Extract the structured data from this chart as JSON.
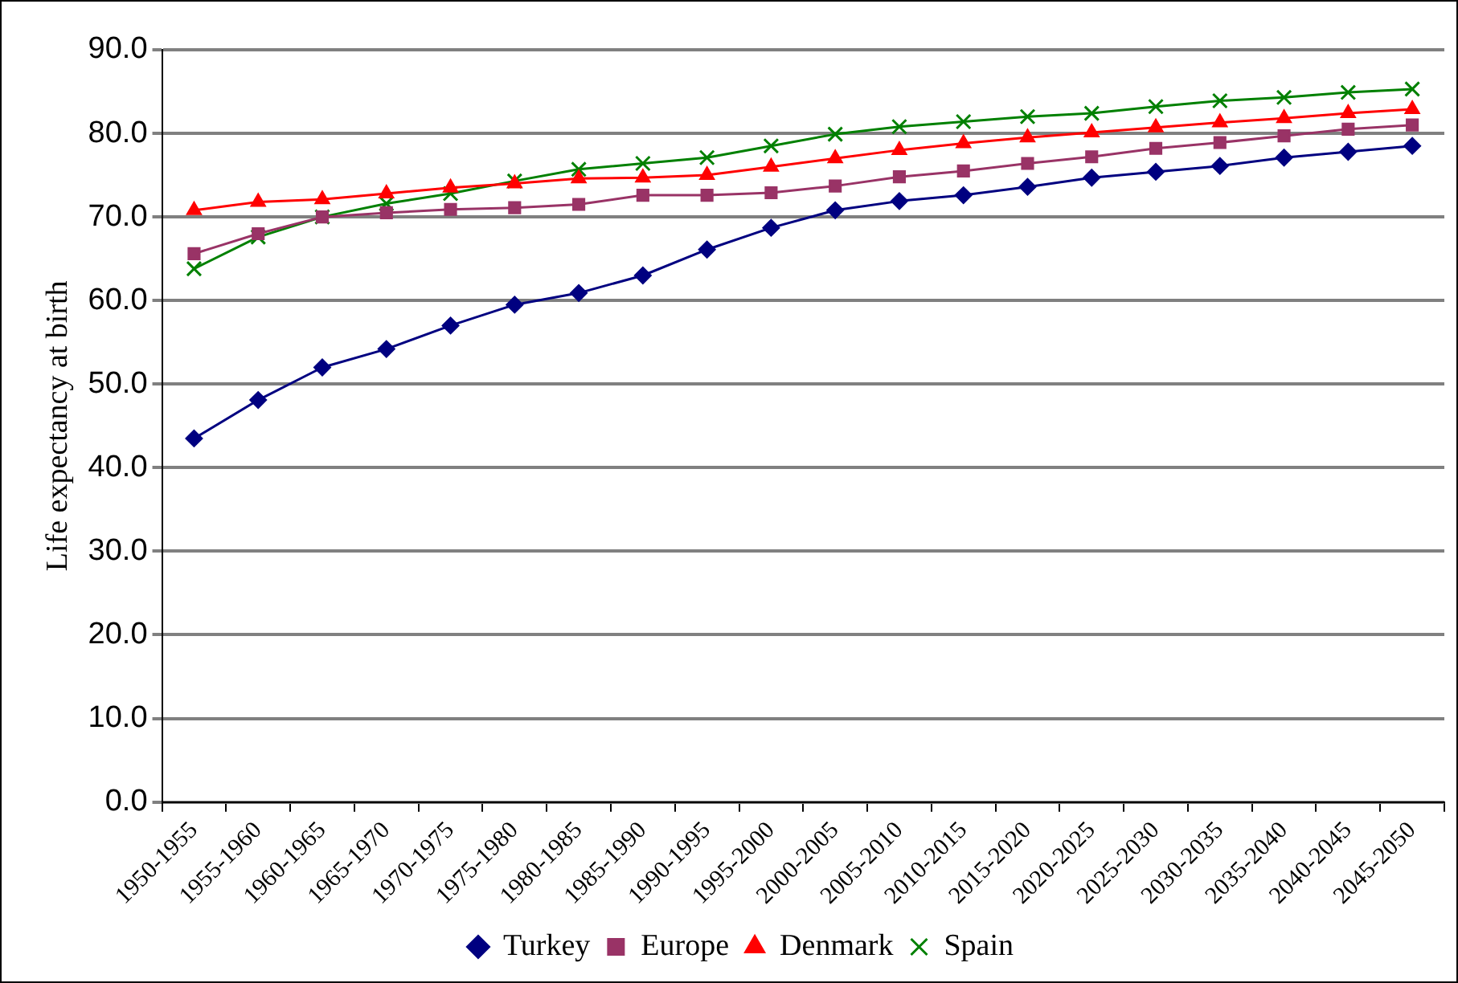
{
  "chart_data": {
    "type": "line",
    "ylabel": "Life expectancy at birth",
    "categories": [
      "1950-1955",
      "1955-1960",
      "1960-1965",
      "1965-1970",
      "1970-1975",
      "1975-1980",
      "1980-1985",
      "1985-1990",
      "1990-1995",
      "1995-2000",
      "2000-2005",
      "2005-2010",
      "2010-2015",
      "2015-2020",
      "2020-2025",
      "2025-2030",
      "2030-2035",
      "2035-2040",
      "2040-2045",
      "2045-2050"
    ],
    "series": [
      {
        "name": "Turkey",
        "color": "#000080",
        "marker": "diamond",
        "values": [
          43.5,
          48.1,
          52.0,
          54.2,
          57.0,
          59.5,
          60.9,
          63.0,
          66.1,
          68.7,
          70.8,
          71.9,
          72.6,
          73.6,
          74.7,
          75.4,
          76.1,
          77.1,
          77.8,
          78.5
        ]
      },
      {
        "name": "Europe",
        "color": "#993366",
        "marker": "square",
        "values": [
          65.6,
          68.0,
          70.0,
          70.5,
          70.9,
          71.1,
          71.5,
          72.6,
          72.6,
          72.9,
          73.7,
          74.8,
          75.5,
          76.4,
          77.2,
          78.2,
          78.9,
          79.7,
          80.5,
          81.0
        ]
      },
      {
        "name": "Denmark",
        "color": "#ff0000",
        "marker": "triangle",
        "values": [
          70.8,
          71.8,
          72.1,
          72.8,
          73.5,
          74.0,
          74.6,
          74.7,
          75.0,
          76.0,
          77.0,
          78.0,
          78.8,
          79.5,
          80.1,
          80.7,
          81.3,
          81.8,
          82.4,
          82.9
        ]
      },
      {
        "name": "Spain",
        "color": "#008000",
        "marker": "cross",
        "values": [
          63.8,
          67.6,
          70.0,
          71.6,
          72.8,
          74.3,
          75.7,
          76.4,
          77.1,
          78.5,
          79.9,
          80.8,
          81.4,
          82.0,
          82.4,
          83.2,
          83.9,
          84.3,
          84.9,
          85.3
        ]
      }
    ],
    "ylim": [
      0,
      90
    ],
    "yticks": [
      {
        "value": 0,
        "label": "0.0"
      },
      {
        "value": 10,
        "label": "10.0"
      },
      {
        "value": 20,
        "label": "20.0"
      },
      {
        "value": 30,
        "label": "30.0"
      },
      {
        "value": 40,
        "label": "40.0"
      },
      {
        "value": 50,
        "label": "50.0"
      },
      {
        "value": 60,
        "label": "60.0"
      },
      {
        "value": 70,
        "label": "70.0"
      },
      {
        "value": 80,
        "label": "80.0"
      },
      {
        "value": 90,
        "label": "90.0"
      }
    ],
    "grid": "y",
    "legend": "bottom"
  }
}
